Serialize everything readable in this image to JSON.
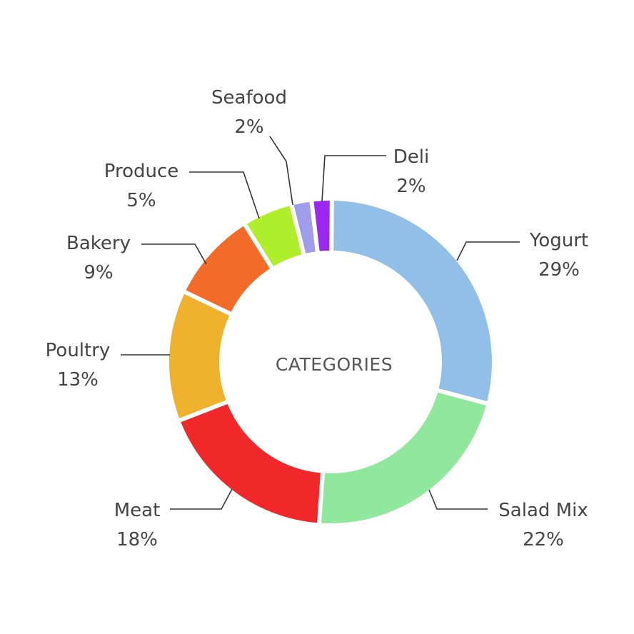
{
  "chart_data": {
    "type": "pie",
    "variant": "donut",
    "center_label": "CATEGORIES",
    "slices": [
      {
        "name": "Yogurt",
        "value": 29,
        "pct_label": "29%",
        "color": "#92BFE8"
      },
      {
        "name": "Salad Mix",
        "value": 22,
        "pct_label": "22%",
        "color": "#8FE89C"
      },
      {
        "name": "Meat",
        "value": 18,
        "pct_label": "18%",
        "color": "#F0282A"
      },
      {
        "name": "Poultry",
        "value": 13,
        "pct_label": "13%",
        "color": "#EFB12C"
      },
      {
        "name": "Bakery",
        "value": 9,
        "pct_label": "9%",
        "color": "#F26B28"
      },
      {
        "name": "Produce",
        "value": 5,
        "pct_label": "5%",
        "color": "#AEEE2A"
      },
      {
        "name": "Seafood",
        "value": 2,
        "pct_label": "2%",
        "color": "#9E9CEB"
      },
      {
        "name": "Deli",
        "value": 2,
        "pct_label": "2%",
        "color": "#9B27F2"
      }
    ],
    "legend": "none"
  }
}
